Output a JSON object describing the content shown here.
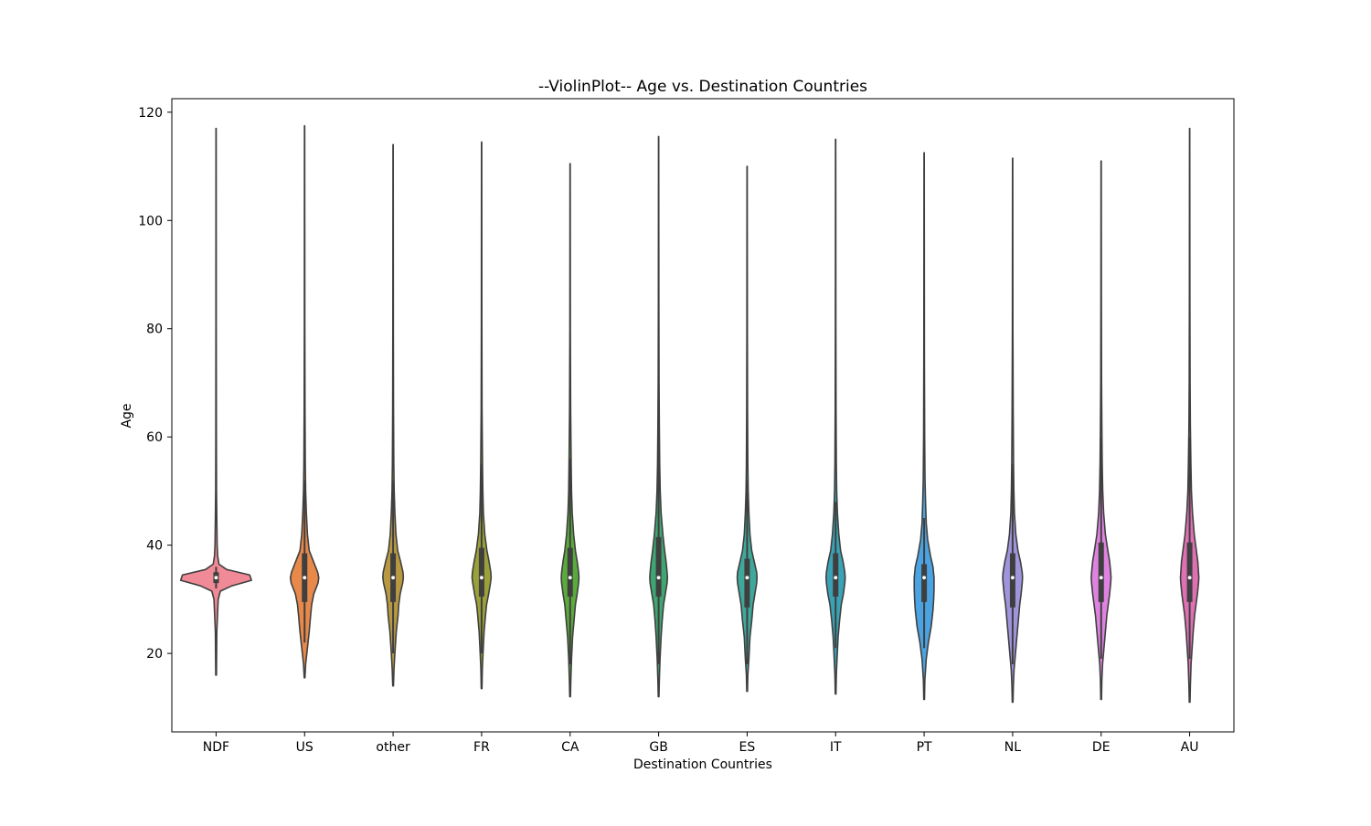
{
  "chart_data": {
    "type": "violin",
    "title": "--ViolinPlot-- Age vs. Destination Countries",
    "xlabel": "Destination Countries",
    "ylabel": "Age",
    "ylim": [
      5.5,
      122.5
    ],
    "yticks": [
      20,
      40,
      60,
      80,
      100,
      120
    ],
    "grid": false,
    "legend": "none",
    "series": [
      {
        "category": "NDF",
        "color": "#f08a96",
        "min": 16,
        "max": 117,
        "q1": 33,
        "median": 34,
        "q3": 35,
        "whisker_low": 32,
        "whisker_high": 36,
        "density": [
          [
            16,
            0.01
          ],
          [
            20,
            0.015
          ],
          [
            24,
            0.02
          ],
          [
            27,
            0.04
          ],
          [
            30,
            0.06
          ],
          [
            31.5,
            0.12
          ],
          [
            32.5,
            0.45
          ],
          [
            33.5,
            1.0
          ],
          [
            34.5,
            0.95
          ],
          [
            35.5,
            0.3
          ],
          [
            36.5,
            0.08
          ],
          [
            38,
            0.045
          ],
          [
            40,
            0.03
          ],
          [
            45,
            0.02
          ],
          [
            50,
            0.012
          ],
          [
            60,
            0.008
          ],
          [
            80,
            0.005
          ],
          [
            117,
            0.003
          ]
        ]
      },
      {
        "category": "US",
        "color": "#e8894a",
        "min": 15.5,
        "max": 117.5,
        "q1": 29.5,
        "median": 34,
        "q3": 38.5,
        "whisker_low": 22,
        "whisker_high": 52,
        "density": [
          [
            15.5,
            0.01
          ],
          [
            18,
            0.03
          ],
          [
            21,
            0.08
          ],
          [
            24,
            0.13
          ],
          [
            27,
            0.17
          ],
          [
            29,
            0.2
          ],
          [
            31,
            0.26
          ],
          [
            33,
            0.38
          ],
          [
            34,
            0.4
          ],
          [
            35,
            0.37
          ],
          [
            37,
            0.25
          ],
          [
            39,
            0.13
          ],
          [
            42,
            0.08
          ],
          [
            46,
            0.05
          ],
          [
            50,
            0.03
          ],
          [
            55,
            0.02
          ],
          [
            65,
            0.012
          ],
          [
            80,
            0.007
          ],
          [
            100,
            0.005
          ],
          [
            117.5,
            0.003
          ]
        ]
      },
      {
        "category": "other",
        "color": "#b89942",
        "min": 14,
        "max": 114,
        "q1": 29.5,
        "median": 34,
        "q3": 38.5,
        "whisker_low": 20,
        "whisker_high": 52,
        "density": [
          [
            14,
            0.01
          ],
          [
            17,
            0.025
          ],
          [
            20,
            0.05
          ],
          [
            24,
            0.09
          ],
          [
            27,
            0.14
          ],
          [
            29,
            0.16
          ],
          [
            31,
            0.2
          ],
          [
            33,
            0.27
          ],
          [
            34,
            0.29
          ],
          [
            35,
            0.28
          ],
          [
            37,
            0.21
          ],
          [
            39,
            0.13
          ],
          [
            42,
            0.08
          ],
          [
            46,
            0.05
          ],
          [
            50,
            0.03
          ],
          [
            55,
            0.02
          ],
          [
            65,
            0.012
          ],
          [
            80,
            0.007
          ],
          [
            114,
            0.003
          ]
        ]
      },
      {
        "category": "FR",
        "color": "#9ba038",
        "min": 13.5,
        "max": 114.5,
        "q1": 30.5,
        "median": 34,
        "q3": 39.5,
        "whisker_low": 20,
        "whisker_high": 55,
        "density": [
          [
            13.5,
            0.01
          ],
          [
            17,
            0.02
          ],
          [
            20,
            0.04
          ],
          [
            24,
            0.07
          ],
          [
            27,
            0.11
          ],
          [
            29,
            0.14
          ],
          [
            31,
            0.2
          ],
          [
            33,
            0.25
          ],
          [
            34,
            0.27
          ],
          [
            35,
            0.26
          ],
          [
            37,
            0.21
          ],
          [
            39,
            0.15
          ],
          [
            42,
            0.09
          ],
          [
            46,
            0.05
          ],
          [
            50,
            0.035
          ],
          [
            55,
            0.025
          ],
          [
            65,
            0.012
          ],
          [
            80,
            0.007
          ],
          [
            114.5,
            0.003
          ]
        ]
      },
      {
        "category": "CA",
        "color": "#5aab3c",
        "min": 12,
        "max": 110.5,
        "q1": 30.5,
        "median": 34,
        "q3": 39.5,
        "whisker_low": 18,
        "whisker_high": 56,
        "density": [
          [
            12,
            0.01
          ],
          [
            15,
            0.02
          ],
          [
            19,
            0.04
          ],
          [
            23,
            0.07
          ],
          [
            26,
            0.11
          ],
          [
            29,
            0.15
          ],
          [
            31,
            0.2
          ],
          [
            33,
            0.24
          ],
          [
            34,
            0.25
          ],
          [
            35,
            0.24
          ],
          [
            37,
            0.2
          ],
          [
            39,
            0.15
          ],
          [
            42,
            0.1
          ],
          [
            46,
            0.06
          ],
          [
            50,
            0.04
          ],
          [
            55,
            0.03
          ],
          [
            65,
            0.015
          ],
          [
            80,
            0.007
          ],
          [
            110.5,
            0.003
          ]
        ]
      },
      {
        "category": "GB",
        "color": "#3fa671",
        "min": 12,
        "max": 115.5,
        "q1": 30.5,
        "median": 34,
        "q3": 41.5,
        "whisker_low": 18,
        "whisker_high": 62,
        "density": [
          [
            12,
            0.01
          ],
          [
            15,
            0.02
          ],
          [
            19,
            0.04
          ],
          [
            23,
            0.07
          ],
          [
            26,
            0.1
          ],
          [
            29,
            0.14
          ],
          [
            31,
            0.19
          ],
          [
            33,
            0.24
          ],
          [
            34,
            0.25
          ],
          [
            35,
            0.24
          ],
          [
            37,
            0.21
          ],
          [
            39,
            0.17
          ],
          [
            42,
            0.12
          ],
          [
            46,
            0.07
          ],
          [
            50,
            0.045
          ],
          [
            55,
            0.03
          ],
          [
            62,
            0.02
          ],
          [
            70,
            0.012
          ],
          [
            85,
            0.007
          ],
          [
            115.5,
            0.003
          ]
        ]
      },
      {
        "category": "ES",
        "color": "#40a89a",
        "min": 13,
        "max": 110,
        "q1": 28.5,
        "median": 34,
        "q3": 37.5,
        "whisker_low": 18,
        "whisker_high": 52,
        "density": [
          [
            13,
            0.01
          ],
          [
            16,
            0.02
          ],
          [
            19,
            0.05
          ],
          [
            23,
            0.08
          ],
          [
            26,
            0.13
          ],
          [
            29,
            0.17
          ],
          [
            31,
            0.22
          ],
          [
            33,
            0.27
          ],
          [
            34,
            0.28
          ],
          [
            35,
            0.27
          ],
          [
            37,
            0.2
          ],
          [
            39,
            0.13
          ],
          [
            42,
            0.08
          ],
          [
            46,
            0.05
          ],
          [
            50,
            0.03
          ],
          [
            55,
            0.02
          ],
          [
            65,
            0.012
          ],
          [
            80,
            0.007
          ],
          [
            110,
            0.003
          ]
        ]
      },
      {
        "category": "IT",
        "color": "#3aa2b5",
        "min": 12.5,
        "max": 115,
        "q1": 30.5,
        "median": 34,
        "q3": 38.5,
        "whisker_low": 21,
        "whisker_high": 48,
        "density": [
          [
            12.5,
            0.01
          ],
          [
            16,
            0.02
          ],
          [
            19,
            0.04
          ],
          [
            23,
            0.07
          ],
          [
            26,
            0.11
          ],
          [
            29,
            0.16
          ],
          [
            31,
            0.22
          ],
          [
            33,
            0.26
          ],
          [
            34,
            0.27
          ],
          [
            35,
            0.26
          ],
          [
            37,
            0.21
          ],
          [
            39,
            0.14
          ],
          [
            42,
            0.09
          ],
          [
            46,
            0.05
          ],
          [
            50,
            0.03
          ],
          [
            55,
            0.02
          ],
          [
            65,
            0.012
          ],
          [
            80,
            0.007
          ],
          [
            115,
            0.003
          ]
        ]
      },
      {
        "category": "PT",
        "color": "#4aa3e2",
        "min": 11.5,
        "max": 112.5,
        "q1": 29.5,
        "median": 34,
        "q3": 36.5,
        "whisker_low": 21,
        "whisker_high": 45,
        "density": [
          [
            11.5,
            0.01
          ],
          [
            15,
            0.02
          ],
          [
            19,
            0.06
          ],
          [
            22,
            0.12
          ],
          [
            25,
            0.2
          ],
          [
            28,
            0.25
          ],
          [
            30,
            0.27
          ],
          [
            32,
            0.28
          ],
          [
            34,
            0.28
          ],
          [
            36,
            0.25
          ],
          [
            38,
            0.18
          ],
          [
            41,
            0.1
          ],
          [
            44,
            0.06
          ],
          [
            48,
            0.04
          ],
          [
            52,
            0.025
          ],
          [
            60,
            0.015
          ],
          [
            75,
            0.008
          ],
          [
            112.5,
            0.003
          ]
        ]
      },
      {
        "category": "NL",
        "color": "#9f95dc",
        "min": 11,
        "max": 111.5,
        "q1": 28.5,
        "median": 34,
        "q3": 38.5,
        "whisker_low": 18,
        "whisker_high": 55,
        "density": [
          [
            11,
            0.01
          ],
          [
            14,
            0.02
          ],
          [
            17,
            0.04
          ],
          [
            20,
            0.08
          ],
          [
            23,
            0.12
          ],
          [
            26,
            0.16
          ],
          [
            29,
            0.2
          ],
          [
            31,
            0.24
          ],
          [
            33,
            0.27
          ],
          [
            34,
            0.28
          ],
          [
            35,
            0.27
          ],
          [
            37,
            0.22
          ],
          [
            39,
            0.15
          ],
          [
            42,
            0.09
          ],
          [
            46,
            0.05
          ],
          [
            50,
            0.035
          ],
          [
            55,
            0.025
          ],
          [
            65,
            0.015
          ],
          [
            80,
            0.007
          ],
          [
            111.5,
            0.003
          ]
        ]
      },
      {
        "category": "DE",
        "color": "#df82e0",
        "min": 11.5,
        "max": 111,
        "q1": 29.5,
        "median": 34,
        "q3": 40.5,
        "whisker_low": 19,
        "whisker_high": 60,
        "density": [
          [
            11.5,
            0.01
          ],
          [
            15,
            0.02
          ],
          [
            18,
            0.04
          ],
          [
            21,
            0.08
          ],
          [
            24,
            0.12
          ],
          [
            27,
            0.16
          ],
          [
            29,
            0.2
          ],
          [
            31,
            0.24
          ],
          [
            33,
            0.27
          ],
          [
            34,
            0.28
          ],
          [
            35,
            0.27
          ],
          [
            37,
            0.24
          ],
          [
            39,
            0.19
          ],
          [
            42,
            0.12
          ],
          [
            46,
            0.07
          ],
          [
            50,
            0.045
          ],
          [
            55,
            0.03
          ],
          [
            62,
            0.02
          ],
          [
            70,
            0.012
          ],
          [
            85,
            0.007
          ],
          [
            111,
            0.003
          ]
        ]
      },
      {
        "category": "AU",
        "color": "#e070b4",
        "min": 11,
        "max": 117,
        "q1": 29.5,
        "median": 34,
        "q3": 40.5,
        "whisker_low": 19,
        "whisker_high": 60,
        "density": [
          [
            11,
            0.01
          ],
          [
            14,
            0.02
          ],
          [
            18,
            0.04
          ],
          [
            21,
            0.07
          ],
          [
            24,
            0.1
          ],
          [
            27,
            0.14
          ],
          [
            29,
            0.18
          ],
          [
            31,
            0.22
          ],
          [
            33,
            0.25
          ],
          [
            34,
            0.26
          ],
          [
            35,
            0.25
          ],
          [
            37,
            0.23
          ],
          [
            39,
            0.19
          ],
          [
            42,
            0.13
          ],
          [
            46,
            0.08
          ],
          [
            50,
            0.05
          ],
          [
            55,
            0.035
          ],
          [
            62,
            0.02
          ],
          [
            70,
            0.012
          ],
          [
            85,
            0.007
          ],
          [
            117,
            0.003
          ]
        ]
      }
    ]
  }
}
